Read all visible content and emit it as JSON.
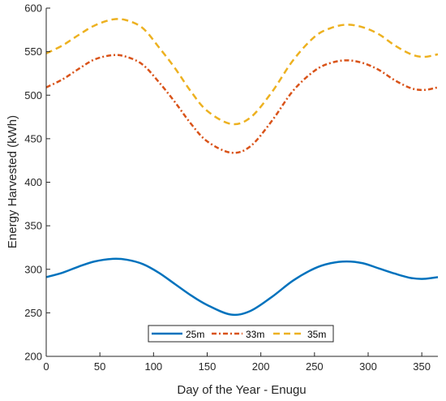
{
  "chart_data": {
    "type": "line",
    "xlabel": "Day of the Year - Enugu",
    "ylabel": "Energy Harvested (kWh)",
    "xlim": [
      0,
      365
    ],
    "ylim": [
      200,
      600
    ],
    "x_ticks": [
      0,
      50,
      100,
      150,
      200,
      250,
      300,
      350
    ],
    "y_ticks": [
      200,
      250,
      300,
      350,
      400,
      450,
      500,
      550,
      600
    ],
    "grid": false,
    "legend_position": "bottom-center",
    "legend_orientation": "horizontal",
    "x": [
      0,
      15,
      30,
      45,
      62,
      75,
      90,
      105,
      120,
      135,
      150,
      172,
      190,
      210,
      230,
      250,
      265,
      280,
      295,
      310,
      325,
      340,
      352,
      365
    ],
    "series": [
      {
        "name": "25m",
        "color": "#0072BD",
        "style": "solid",
        "values": [
          291,
          296,
          303,
          309,
          312,
          311,
          306,
          296,
          283,
          270,
          259,
          248,
          252,
          268,
          287,
          301,
          307,
          309,
          307,
          301,
          295,
          290,
          289,
          291
        ]
      },
      {
        "name": "33m",
        "color": "#D95319",
        "style": "dashdot",
        "values": [
          509,
          518,
          530,
          541,
          546,
          544,
          535,
          515,
          492,
          467,
          447,
          434,
          441,
          470,
          505,
          528,
          537,
          540,
          537,
          529,
          517,
          508,
          506,
          509
        ]
      },
      {
        "name": "35m",
        "color": "#EDB120",
        "style": "dashed",
        "values": [
          548,
          557,
          569,
          580,
          587,
          586,
          577,
          555,
          531,
          504,
          482,
          467,
          474,
          503,
          540,
          567,
          577,
          581,
          578,
          570,
          557,
          547,
          544,
          547
        ]
      }
    ]
  }
}
